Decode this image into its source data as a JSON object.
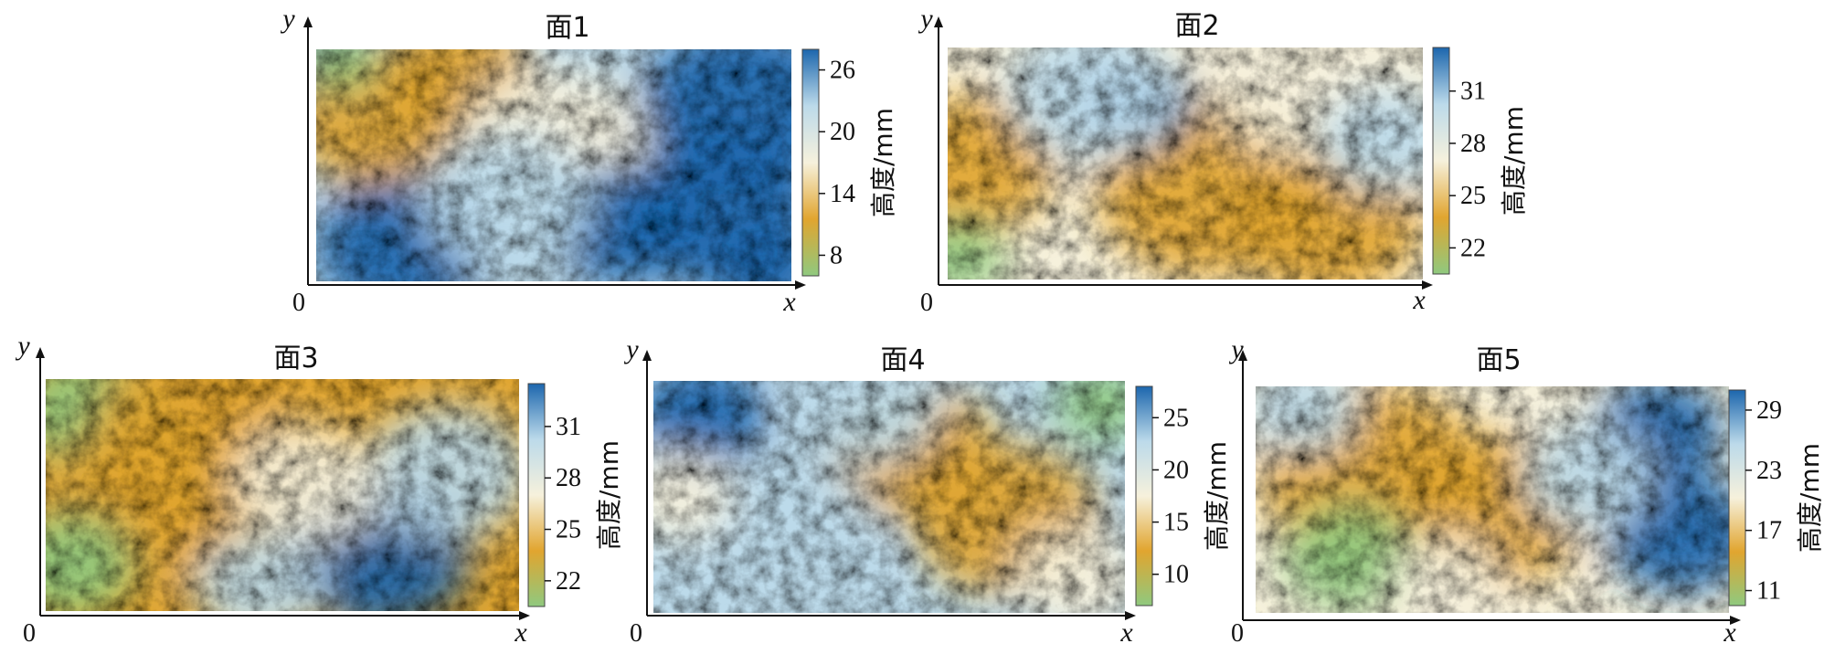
{
  "chart_data": [
    {
      "type": "heatmap",
      "title": "面1",
      "xlabel": "x",
      "ylabel": "y",
      "origin_label": "0",
      "colorbar_label": "高度/mm",
      "colorbar_range": [
        6,
        28
      ],
      "colorbar_ticks": [
        8,
        14,
        20,
        26
      ],
      "grid": false
    },
    {
      "type": "heatmap",
      "title": "面2",
      "xlabel": "x",
      "ylabel": "y",
      "origin_label": "0",
      "colorbar_label": "高度/mm",
      "colorbar_range": [
        20.5,
        33.5
      ],
      "colorbar_ticks": [
        22,
        25,
        28,
        31
      ],
      "grid": false
    },
    {
      "type": "heatmap",
      "title": "面3",
      "xlabel": "x",
      "ylabel": "y",
      "origin_label": "0",
      "colorbar_label": "高度/mm",
      "colorbar_range": [
        20.5,
        33.5
      ],
      "colorbar_ticks": [
        22,
        25,
        28,
        31
      ],
      "grid": false
    },
    {
      "type": "heatmap",
      "title": "面4",
      "xlabel": "x",
      "ylabel": "y",
      "origin_label": "0",
      "colorbar_label": "高度/mm",
      "colorbar_range": [
        7,
        28
      ],
      "colorbar_ticks": [
        10,
        15,
        20,
        25
      ],
      "grid": false
    },
    {
      "type": "heatmap",
      "title": "面5",
      "xlabel": "x",
      "ylabel": "y",
      "origin_label": "0",
      "colorbar_label": "高度/mm",
      "colorbar_range": [
        9.5,
        31
      ],
      "colorbar_ticks": [
        11,
        17,
        23,
        29
      ],
      "grid": false
    }
  ],
  "colormap": [
    "#8fc97f",
    "#e1a52f",
    "#f6f1dc",
    "#bcdaea",
    "#1c66ad"
  ]
}
